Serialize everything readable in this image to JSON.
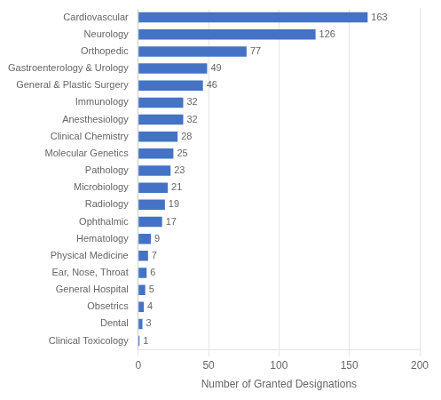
{
  "chart_data": {
    "type": "bar",
    "orientation": "horizontal",
    "categories": [
      "Clinical Toxicology",
      "Dental",
      "Obsetrics",
      "General Hospital",
      "Ear, Nose, Throat",
      "Physical Medicine",
      "Hematology",
      "Ophthalmic",
      "Radiology",
      "Microbiology",
      "Pathology",
      "Molecular Genetics",
      "Clinical Chemistry",
      "Anesthesiology",
      "Immunology",
      "General & Plastic Surgery",
      "Gastroenterology & Urology",
      "Orthopedic",
      "Neurology",
      "Cardiovascular"
    ],
    "values": [
      1,
      3,
      4,
      5,
      6,
      7,
      9,
      17,
      19,
      21,
      23,
      25,
      28,
      32,
      32,
      46,
      49,
      77,
      126,
      163
    ],
    "color": "#4472C4",
    "xlabel": "Number of Granted Designations",
    "xlim": [
      0,
      200
    ],
    "xticks": [
      0,
      50,
      100,
      150,
      200
    ],
    "grid": true,
    "data_labels": true
  }
}
